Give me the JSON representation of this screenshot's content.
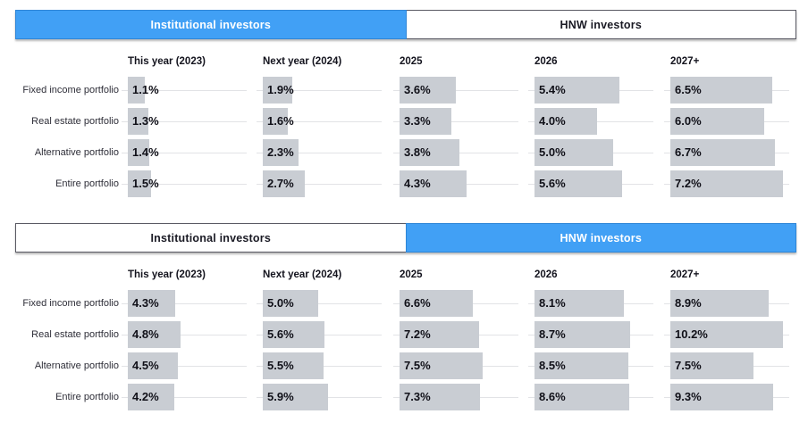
{
  "colors": {
    "accent_blue": "#41a0f5",
    "accent_blue_border": "#2f86d7",
    "bar_gray": "#c9cdd3",
    "track_gray": "#e2e3e6",
    "tab_border": "#5a5a64",
    "text_dark": "#14141e"
  },
  "value_suffix": "%",
  "chart_data": [
    {
      "type": "bar",
      "id": "institutional",
      "title": "Institutional investors",
      "tabs": [
        "Institutional investors",
        "HNW investors"
      ],
      "active_tab": 0,
      "categories": [
        "Fixed income portfolio",
        "Real estate portfolio",
        "Alternative portfolio",
        "Entire portfolio"
      ],
      "series": [
        {
          "name": "This year (2023)",
          "values": [
            1.1,
            1.3,
            1.4,
            1.5
          ]
        },
        {
          "name": "Next year (2024)",
          "values": [
            1.9,
            1.6,
            2.3,
            2.7
          ]
        },
        {
          "name": "2025",
          "values": [
            3.6,
            3.3,
            3.8,
            4.3
          ]
        },
        {
          "name": "2026",
          "values": [
            5.4,
            4.0,
            5.0,
            5.6
          ]
        },
        {
          "name": "2027+",
          "values": [
            6.5,
            6.0,
            6.7,
            7.2
          ]
        }
      ],
      "legend_position": "none",
      "grid": "off",
      "value_labels": "on-bars"
    },
    {
      "type": "bar",
      "id": "hnw",
      "title": "HNW investors",
      "tabs": [
        "Institutional investors",
        "HNW investors"
      ],
      "active_tab": 1,
      "categories": [
        "Fixed income portfolio",
        "Real estate portfolio",
        "Alternative portfolio",
        "Entire portfolio"
      ],
      "series": [
        {
          "name": "This year (2023)",
          "values": [
            4.3,
            4.8,
            4.5,
            4.2
          ]
        },
        {
          "name": "Next year (2024)",
          "values": [
            5.0,
            5.6,
            5.5,
            5.9
          ]
        },
        {
          "name": "2025",
          "values": [
            6.6,
            7.2,
            7.5,
            7.3
          ]
        },
        {
          "name": "2026",
          "values": [
            8.1,
            8.7,
            8.5,
            8.6
          ]
        },
        {
          "name": "2027+",
          "values": [
            8.9,
            10.2,
            7.5,
            9.3
          ]
        }
      ],
      "legend_position": "none",
      "grid": "off",
      "value_labels": "on-bars"
    }
  ]
}
